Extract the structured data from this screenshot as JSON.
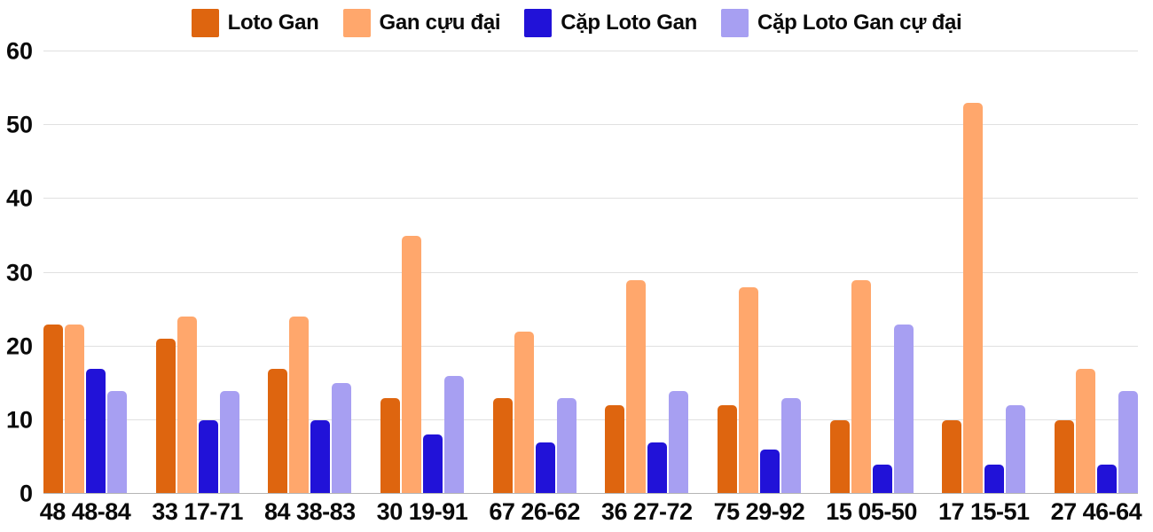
{
  "chart_data": {
    "type": "bar",
    "title": "",
    "xlabel": "",
    "ylabel": "",
    "ylim": [
      0,
      60
    ],
    "yticks": [
      0,
      10,
      20,
      30,
      40,
      50,
      60
    ],
    "grid": true,
    "legend_position": "top",
    "categories": [
      "48 48-84",
      "33 17-71",
      "84 38-83",
      "30 19-91",
      "67 26-62",
      "36 27-72",
      "75 29-92",
      "15 05-50",
      "17 15-51",
      "27 46-64"
    ],
    "series": [
      {
        "name": "Loto Gan",
        "color": "#de650f",
        "values": [
          23,
          21,
          17,
          13,
          13,
          12,
          12,
          10,
          10,
          10
        ]
      },
      {
        "name": "Gan cựu đại",
        "color": "#ffa76c",
        "values": [
          23,
          24,
          24,
          35,
          22,
          29,
          28,
          29,
          53,
          17
        ]
      },
      {
        "name": "Cặp Loto Gan",
        "color": "#2112d8",
        "values": [
          17,
          10,
          10,
          8,
          7,
          7,
          6,
          4,
          4,
          4
        ]
      },
      {
        "name": "Cặp Loto Gan cự đại",
        "color": "#a79ff2",
        "values": [
          14,
          14,
          15,
          16,
          13,
          14,
          13,
          23,
          12,
          14
        ]
      }
    ]
  },
  "colors": {
    "background": "#ffffff",
    "gridline": "#e0e0e0",
    "baseline": "#b5b5b5",
    "text": "#0a0a0a"
  }
}
